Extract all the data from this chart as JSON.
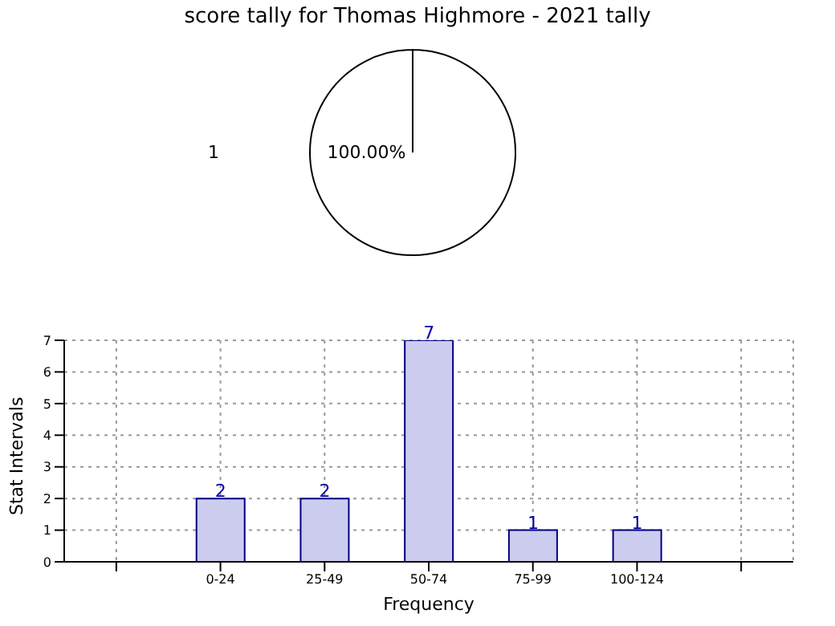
{
  "chart_data": [
    {
      "type": "pie",
      "title": "score tally for Thomas Highmore - 2021 tally",
      "categories": [
        "1"
      ],
      "values": [
        100
      ],
      "colors": [
        "#ffffff"
      ],
      "value_labels": [
        "100.00%"
      ],
      "legend": false
    },
    {
      "type": "bar",
      "categories": [
        null,
        "0-24",
        "25-49",
        "50-74",
        "75-99",
        "100-124",
        null
      ],
      "values": [
        null,
        2,
        2,
        7,
        1,
        1,
        null
      ],
      "color": "#ccccee",
      "xlabel": "Frequency",
      "ylabel": "Stat Intervals",
      "ylim": [
        0,
        7
      ],
      "yticks": [
        0,
        1,
        2,
        3,
        4,
        5,
        6,
        7
      ],
      "grid": true,
      "data_labels": true,
      "legend": false
    }
  ]
}
